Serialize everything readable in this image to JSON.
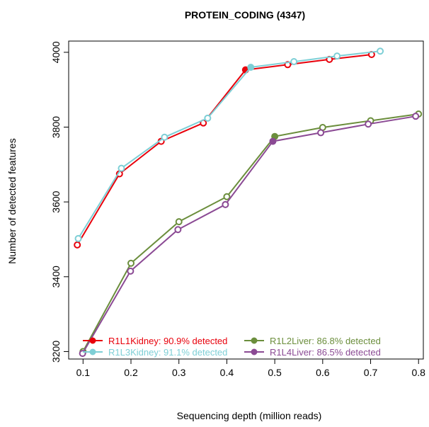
{
  "chart_data": {
    "type": "line",
    "title": "PROTEIN_CODING (4347)",
    "xlabel": "Sequencing depth (million reads)",
    "ylabel": "Number of detected features",
    "xlim": [
      0.07,
      0.81
    ],
    "ylim": [
      3180,
      4030
    ],
    "xticks": [
      0.1,
      0.2,
      0.3,
      0.4,
      0.5,
      0.6,
      0.7,
      0.8
    ],
    "xtick_labels": [
      "0.1",
      "0.2",
      "0.3",
      "0.4",
      "0.5",
      "0.6",
      "0.7",
      "0.8"
    ],
    "yticks": [
      3200,
      3400,
      3600,
      3800,
      4000
    ],
    "ytick_labels": [
      "3200",
      "3400",
      "3600",
      "3800",
      "4000"
    ],
    "legend_position": "bottom",
    "series": [
      {
        "name": "R1L1Kidney",
        "legend": "R1L1Kidney: 90.9% detected",
        "color": "#e8000b",
        "x": [
          0.088,
          0.176,
          0.263,
          0.351,
          0.439,
          0.527,
          0.614,
          0.702
        ],
        "y": [
          3485,
          3675,
          3762,
          3811,
          3953,
          3967,
          3981,
          3994
        ],
        "filled_index": 4
      },
      {
        "name": "R1L2Liver",
        "legend": "R1L2Liver: 86.8% detected",
        "color": "#6b8e3c",
        "x": [
          0.1,
          0.2,
          0.3,
          0.4,
          0.5,
          0.6,
          0.7,
          0.8
        ],
        "y": [
          3200,
          3436,
          3547,
          3614,
          3775,
          3799,
          3817,
          3835
        ],
        "filled_index": 4
      },
      {
        "name": "R1L3Kidney",
        "legend": "R1L3Kidney: 91.1% detected",
        "color": "#7ecfd6",
        "x": [
          0.09,
          0.18,
          0.27,
          0.36,
          0.45,
          0.54,
          0.63,
          0.72
        ],
        "y": [
          3502,
          3690,
          3773,
          3824,
          3960,
          3975,
          3990,
          4003
        ],
        "filled_index": 4
      },
      {
        "name": "R1L4Liver",
        "legend": "R1L4Liver: 86.5% detected",
        "color": "#8b4a94",
        "x": [
          0.099,
          0.199,
          0.298,
          0.397,
          0.496,
          0.596,
          0.695,
          0.794
        ],
        "y": [
          3195,
          3415,
          3526,
          3593,
          3762,
          3785,
          3808,
          3829
        ],
        "filled_index": 4
      }
    ]
  }
}
